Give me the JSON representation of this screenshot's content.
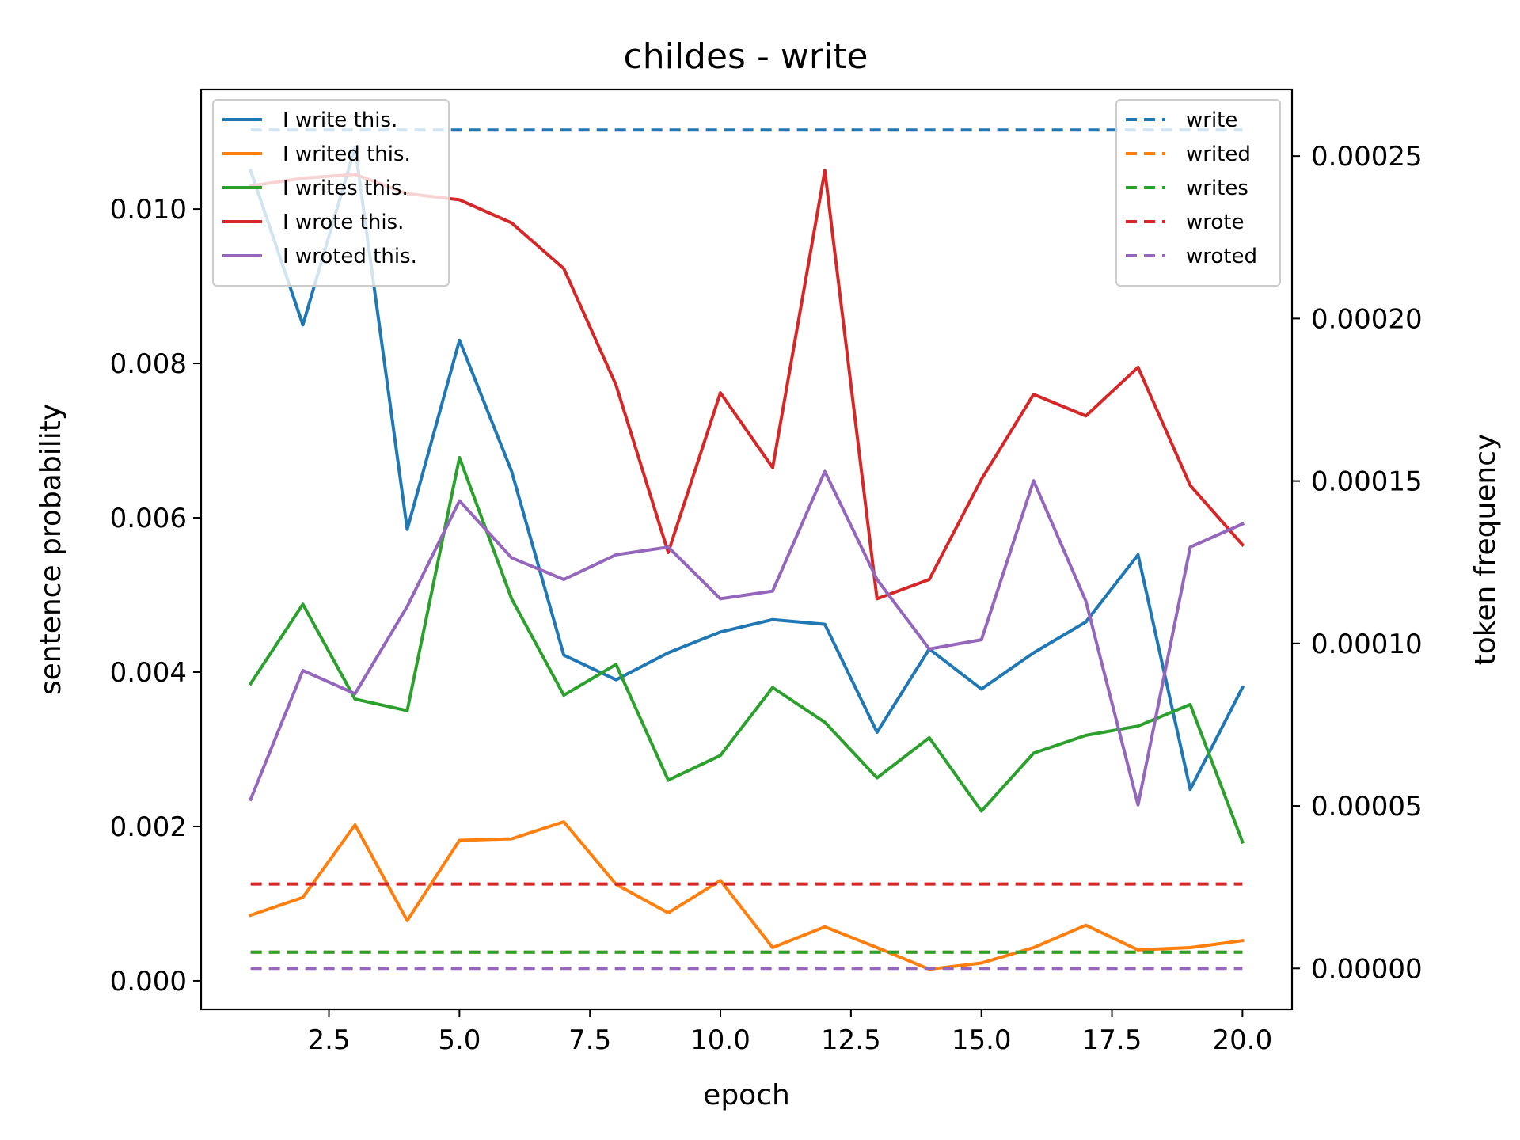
{
  "chart_data": {
    "type": "line",
    "title": "childes - write",
    "xlabel": "epoch",
    "ylabel": "sentence probability",
    "y2label": "token frequency",
    "xlim": [
      0.05,
      20.95
    ],
    "ylim": [
      -0.00037,
      0.01155
    ],
    "y2lim": [
      -1.26e-05,
      0.0002705
    ],
    "x_ticks": [
      2.5,
      5.0,
      7.5,
      10.0,
      12.5,
      15.0,
      17.5,
      20.0
    ],
    "x_tick_labels": [
      "2.5",
      "5.0",
      "7.5",
      "10.0",
      "12.5",
      "15.0",
      "17.5",
      "20.0"
    ],
    "y_ticks": [
      0.0,
      0.002,
      0.004,
      0.006,
      0.008,
      0.01
    ],
    "y_tick_labels": [
      "0.000",
      "0.002",
      "0.004",
      "0.006",
      "0.008",
      "0.010"
    ],
    "y2_ticks": [
      0.0,
      5e-05,
      0.0001,
      0.00015,
      0.0002,
      0.00025
    ],
    "y2_tick_labels": [
      "0.00000",
      "0.00005",
      "0.00010",
      "0.00015",
      "0.00020",
      "0.00025"
    ],
    "x": [
      1,
      2,
      3,
      4,
      5,
      6,
      7,
      8,
      9,
      10,
      11,
      12,
      13,
      14,
      15,
      16,
      17,
      18,
      19,
      20
    ],
    "series": [
      {
        "name": "I write this.",
        "color": "#1f77b4",
        "values": [
          0.0105,
          0.0085,
          0.0108,
          0.00585,
          0.0083,
          0.0066,
          0.00422,
          0.0039,
          0.00425,
          0.00452,
          0.00468,
          0.00462,
          0.00322,
          0.0043,
          0.00378,
          0.00425,
          0.00465,
          0.00552,
          0.00248,
          0.0038
        ]
      },
      {
        "name": "I writed this.",
        "color": "#ff7f0e",
        "values": [
          0.00085,
          0.00108,
          0.00202,
          0.00078,
          0.00182,
          0.00184,
          0.00206,
          0.00125,
          0.00088,
          0.0013,
          0.00043,
          0.0007,
          0.00043,
          0.00015,
          0.00023,
          0.00043,
          0.00072,
          0.0004,
          0.00043,
          0.00052
        ]
      },
      {
        "name": "I writes this.",
        "color": "#2ca02c",
        "values": [
          0.00385,
          0.00488,
          0.00365,
          0.0035,
          0.00678,
          0.00495,
          0.0037,
          0.0041,
          0.0026,
          0.00292,
          0.0038,
          0.00335,
          0.00263,
          0.00315,
          0.0022,
          0.00295,
          0.00318,
          0.0033,
          0.00358,
          0.0018
        ]
      },
      {
        "name": "I wrote this.",
        "color": "#d62728",
        "values": [
          0.0103,
          0.0104,
          0.01045,
          0.0102,
          0.01012,
          0.00982,
          0.00923,
          0.00772,
          0.00555,
          0.00762,
          0.00665,
          0.0105,
          0.00495,
          0.0052,
          0.0065,
          0.0076,
          0.00732,
          0.00795,
          0.00642,
          0.00565
        ]
      },
      {
        "name": "I wroted this.",
        "color": "#9467bd",
        "values": [
          0.00235,
          0.00402,
          0.00372,
          0.00485,
          0.00622,
          0.00548,
          0.0052,
          0.00552,
          0.00562,
          0.00495,
          0.00505,
          0.0066,
          0.0052,
          0.0043,
          0.00442,
          0.00648,
          0.00492,
          0.00228,
          0.00562,
          0.00592
        ]
      }
    ],
    "frequency_series": [
      {
        "name": "write",
        "color": "#1f77b4",
        "value": 0.000258
      },
      {
        "name": "writed",
        "color": "#ff7f0e",
        "value": 5e-06
      },
      {
        "name": "writes",
        "color": "#2ca02c",
        "value": 5e-06
      },
      {
        "name": "wrote",
        "color": "#d62728",
        "value": 2.6e-05
      },
      {
        "name": "wroted",
        "color": "#9467bd",
        "value": 0.0
      }
    ],
    "legend_left_placement": "upper-left",
    "legend_right_placement": "upper-right",
    "grid": false
  }
}
